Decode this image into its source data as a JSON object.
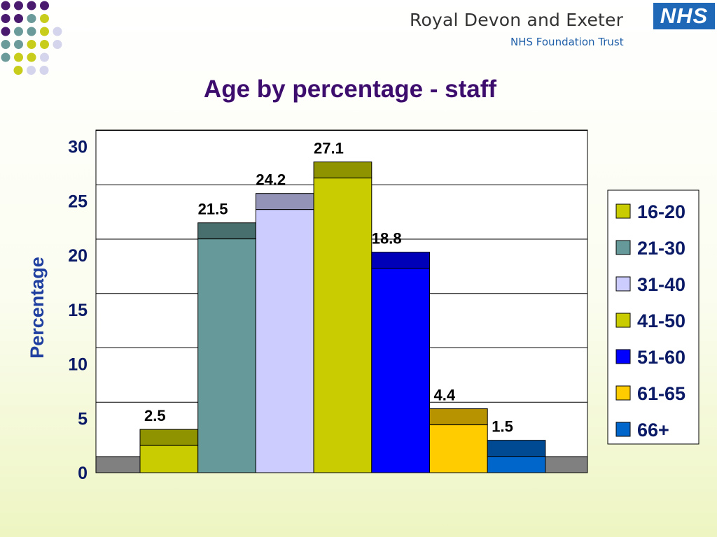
{
  "header": {
    "org_name": "Royal Devon and Exeter",
    "org_subtitle": "NHS Foundation Trust",
    "logo_text": "NHS"
  },
  "decoration": {
    "dot_colors": [
      "#4a1a6e",
      "#6a9a9a",
      "#c8cc1a",
      "#d4d4ec"
    ]
  },
  "chart_data": {
    "type": "bar",
    "title": "Age by percentage - staff",
    "xlabel": "",
    "ylabel": "Percentage",
    "ylim": [
      0,
      30
    ],
    "yticks": [
      0,
      5,
      10,
      15,
      20,
      25,
      30
    ],
    "grid": true,
    "legend_position": "right",
    "categories": [
      "16-20",
      "21-30",
      "31-40",
      "41-50",
      "51-60",
      "61-65",
      "66+"
    ],
    "values": [
      2.5,
      21.5,
      24.2,
      27.1,
      18.8,
      4.4,
      1.5
    ],
    "data_labels": [
      "2.5",
      "21.5",
      "24.2",
      "27.1",
      "18.8",
      "4.4",
      "1.5"
    ],
    "colors": [
      "#c8cc00",
      "#669999",
      "#ccccff",
      "#c8cc00",
      "#0000ff",
      "#ffcc00",
      "#0066cc"
    ],
    "legend": [
      "16-20",
      "21-30",
      "31-40",
      "41-50",
      "51-60",
      "61-65",
      "66+"
    ]
  }
}
